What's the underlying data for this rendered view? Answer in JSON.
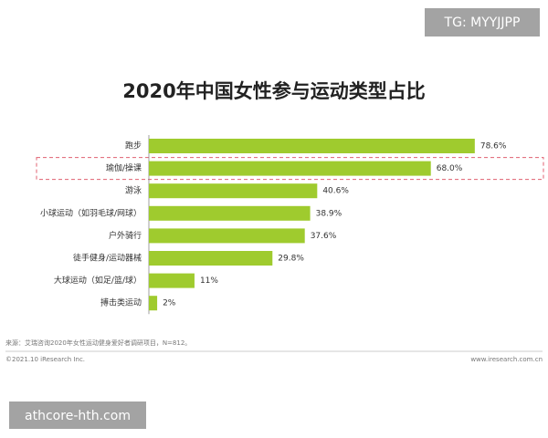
{
  "chart_data": {
    "type": "bar",
    "orientation": "horizontal",
    "title": "2020年中国女性参与运动类型占比",
    "categories": [
      "跑步",
      "瑜伽/操课",
      "游泳",
      "小球运动（如羽毛球/网球）",
      "户外骑行",
      "徒手健身/运动器械",
      "大球运动（如足/篮/球）",
      "搏击类运动"
    ],
    "values": [
      78.6,
      68.0,
      40.6,
      38.9,
      37.6,
      29.8,
      11,
      2
    ],
    "value_labels": [
      "78.6%",
      "68.0%",
      "40.6%",
      "38.9%",
      "37.6%",
      "29.8%",
      "11%",
      "2%"
    ],
    "color": "#9fcb2e",
    "highlight": 1,
    "source": "来源：艾瑞咨询2020年女性运动健身爱好者调研项目，N=812。",
    "copyright": "©2021.10 iResearch Inc.",
    "website": "www.iresearch.com.cn"
  },
  "watermarks": {
    "top_right": "TG: MYYJJPP",
    "bottom_left": "athcore-hth.com"
  }
}
